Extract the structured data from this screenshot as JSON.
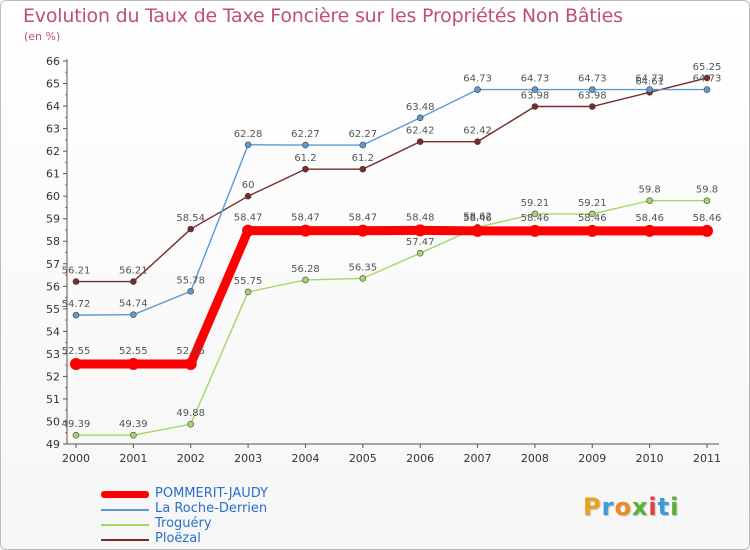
{
  "header": {
    "title": "Evolution du Taux de Taxe Foncière sur les Propriétés Non Bâties",
    "unit": "(en %)"
  },
  "logo": {
    "letters": [
      "P",
      "r",
      "o",
      "x",
      "i",
      "t",
      "i"
    ],
    "colors": [
      "#e8a020",
      "#3a9be0",
      "#f08a24",
      "#5ab034",
      "#e33c3c",
      "#3a9be0",
      "#5ab034"
    ]
  },
  "chart_data": {
    "type": "line",
    "title": "Evolution du Taux de Taxe Foncière sur les Propriétés Non Bâties",
    "ylabel": "(en %)",
    "xlabel": "",
    "x": [
      "2000",
      "2001",
      "2002",
      "2003",
      "2004",
      "2005",
      "2006",
      "2007",
      "2008",
      "2009",
      "2010",
      "2011"
    ],
    "yticks": [
      49,
      50,
      51,
      52,
      53,
      54,
      55,
      56,
      57,
      58,
      59,
      60,
      61,
      62,
      63,
      64,
      65,
      66
    ],
    "ylim": [
      49,
      66
    ],
    "grid": false,
    "legend": "bottom-left",
    "series": [
      {
        "name": "Ploëzal",
        "color": "#7a2a2a",
        "values": [
          56.21,
          56.21,
          58.54,
          60,
          61.2,
          61.2,
          62.42,
          62.42,
          63.98,
          63.98,
          64.61,
          65.25
        ],
        "labels": [
          "56.21",
          "56.21",
          "58.54",
          "60",
          "61.2",
          "61.2",
          "62.42",
          "62.42",
          "63.98",
          "63.98",
          "64.61",
          "65.25"
        ]
      },
      {
        "name": "La Roche-Derrien",
        "color": "#5b9bd5",
        "values": [
          54.72,
          54.74,
          55.78,
          62.28,
          62.27,
          62.27,
          63.48,
          64.73,
          64.73,
          64.73,
          64.73,
          64.73
        ],
        "labels": [
          "54.72",
          "54.74",
          "55.78",
          "62.28",
          "62.27",
          "62.27",
          "63.48",
          "64.73",
          "64.73",
          "64.73",
          "64.73",
          "64.73"
        ]
      },
      {
        "name": "Troguéry",
        "color": "#a5d66c",
        "values": [
          49.39,
          49.39,
          49.88,
          55.75,
          56.28,
          56.35,
          57.47,
          58.62,
          59.21,
          59.21,
          59.8,
          59.8
        ],
        "labels": [
          "49.39",
          "49.39",
          "49.88",
          "55.75",
          "56.28",
          "56.35",
          "57.47",
          "58.62",
          "59.21",
          "59.21",
          "59.8",
          "59.8"
        ]
      },
      {
        "name": "POMMERIT-JAUDY",
        "color": "#ff0000",
        "values": [
          52.55,
          52.55,
          52.55,
          58.47,
          58.47,
          58.47,
          58.48,
          58.46,
          58.46,
          58.46,
          58.46,
          58.46
        ],
        "labels": [
          "52.55",
          "52.55",
          "52.55",
          "58.47",
          "58.47",
          "58.47",
          "58.48",
          "58.46",
          "58.46",
          "58.46",
          "58.46",
          "58.46"
        ]
      }
    ]
  },
  "legend": {
    "items": [
      {
        "label": "POMMERIT-JAUDY",
        "color": "#ff0000"
      },
      {
        "label": "La Roche-Derrien",
        "color": "#5b9bd5"
      },
      {
        "label": "Troguéry",
        "color": "#a5d66c"
      },
      {
        "label": "Ploëzal",
        "color": "#7a2a2a"
      }
    ]
  }
}
